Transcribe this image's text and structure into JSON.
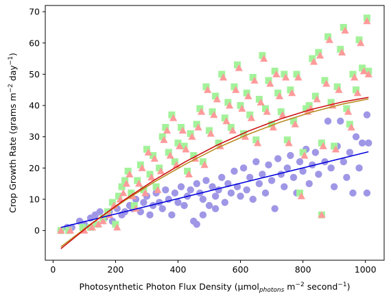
{
  "chart_data": {
    "type": "scatter",
    "title": "",
    "xlabel": "Photosynthetic Photon Flux Density",
    "xlabel_unit": {
      "open": "(μmol",
      "sub": "photons",
      "mid": " m",
      "sup1": "−2",
      "mid2": " second",
      "sup2": "−1",
      "close": ")"
    },
    "ylabel": "Crop Growth Rate",
    "ylabel_unit": {
      "open": "(grams m",
      "sup1": "−2",
      "mid": " day",
      "sup2": "−1",
      "close": ")"
    },
    "xlim": [
      -25,
      1060
    ],
    "ylim": [
      -9.5,
      72
    ],
    "xticks": [
      0,
      200,
      400,
      600,
      800,
      1000
    ],
    "yticks": [
      0,
      10,
      20,
      30,
      40,
      50,
      60,
      70
    ],
    "grid": false,
    "legend": "none",
    "series": [
      {
        "marker": "circle",
        "color": "#9f97e6",
        "points": [
          [
            25,
            0
          ],
          [
            45,
            1
          ],
          [
            60,
            1
          ],
          [
            85,
            3
          ],
          [
            100,
            2
          ],
          [
            120,
            4
          ],
          [
            135,
            5
          ],
          [
            150,
            6
          ],
          [
            165,
            4
          ],
          [
            180,
            6
          ],
          [
            190,
            3
          ],
          [
            205,
            7
          ],
          [
            220,
            5
          ],
          [
            230,
            6
          ],
          [
            245,
            8
          ],
          [
            255,
            7
          ],
          [
            265,
            10
          ],
          [
            280,
            6
          ],
          [
            290,
            9
          ],
          [
            300,
            11
          ],
          [
            310,
            5
          ],
          [
            320,
            8
          ],
          [
            330,
            12
          ],
          [
            340,
            9
          ],
          [
            350,
            7
          ],
          [
            360,
            13
          ],
          [
            370,
            10
          ],
          [
            380,
            5
          ],
          [
            390,
            12
          ],
          [
            400,
            9
          ],
          [
            410,
            14
          ],
          [
            420,
            8
          ],
          [
            430,
            11
          ],
          [
            440,
            13
          ],
          [
            450,
            3
          ],
          [
            460,
            15
          ],
          [
            470,
            12
          ],
          [
            480,
            10
          ],
          [
            490,
            16
          ],
          [
            500,
            8
          ],
          [
            510,
            14
          ],
          [
            520,
            11
          ],
          [
            530,
            13
          ],
          [
            540,
            17
          ],
          [
            550,
            9
          ],
          [
            560,
            15
          ],
          [
            570,
            12
          ],
          [
            580,
            19
          ],
          [
            590,
            14
          ],
          [
            600,
            11
          ],
          [
            610,
            20
          ],
          [
            620,
            13
          ],
          [
            630,
            17
          ],
          [
            640,
            10
          ],
          [
            650,
            22
          ],
          [
            660,
            15
          ],
          [
            670,
            18
          ],
          [
            680,
            12
          ],
          [
            690,
            21
          ],
          [
            700,
            16
          ],
          [
            710,
            7
          ],
          [
            720,
            23
          ],
          [
            730,
            18
          ],
          [
            740,
            14
          ],
          [
            750,
            20
          ],
          [
            760,
            24
          ],
          [
            770,
            17
          ],
          [
            780,
            12
          ],
          [
            790,
            22
          ],
          [
            800,
            19
          ],
          [
            810,
            26
          ],
          [
            820,
            15
          ],
          [
            830,
            21
          ],
          [
            840,
            25
          ],
          [
            850,
            18
          ],
          [
            860,
            28
          ],
          [
            870,
            22
          ],
          [
            880,
            35
          ],
          [
            890,
            20
          ],
          [
            900,
            14
          ],
          [
            910,
            27
          ],
          [
            920,
            35
          ],
          [
            930,
            22
          ],
          [
            940,
            17
          ],
          [
            950,
            25
          ],
          [
            960,
            12
          ],
          [
            970,
            30
          ],
          [
            980,
            20
          ],
          [
            990,
            28
          ],
          [
            1005,
            37
          ],
          [
            1010,
            28
          ],
          [
            1005,
            12
          ],
          [
            460,
            2
          ],
          [
            480,
            5
          ],
          [
            520,
            7
          ]
        ]
      },
      {
        "marker": "square",
        "color": "#a3f29a",
        "points": [
          [
            25,
            0
          ],
          [
            50,
            0
          ],
          [
            95,
            1
          ],
          [
            120,
            1
          ],
          [
            140,
            2
          ],
          [
            160,
            4
          ],
          [
            175,
            6
          ],
          [
            190,
            9
          ],
          [
            200,
            2
          ],
          [
            210,
            11
          ],
          [
            220,
            14
          ],
          [
            230,
            16
          ],
          [
            240,
            19
          ],
          [
            250,
            12
          ],
          [
            260,
            8
          ],
          [
            270,
            16
          ],
          [
            280,
            21
          ],
          [
            290,
            13
          ],
          [
            300,
            26
          ],
          [
            310,
            18
          ],
          [
            320,
            24
          ],
          [
            330,
            14
          ],
          [
            340,
            20
          ],
          [
            350,
            30
          ],
          [
            360,
            33
          ],
          [
            370,
            25
          ],
          [
            380,
            37
          ],
          [
            390,
            22
          ],
          [
            400,
            28
          ],
          [
            410,
            33
          ],
          [
            420,
            27
          ],
          [
            430,
            19
          ],
          [
            440,
            31
          ],
          [
            450,
            24
          ],
          [
            460,
            34
          ],
          [
            470,
            39
          ],
          [
            480,
            22
          ],
          [
            490,
            46
          ],
          [
            500,
            32
          ],
          [
            510,
            38
          ],
          [
            520,
            43
          ],
          [
            530,
            28
          ],
          [
            540,
            50
          ],
          [
            550,
            36
          ],
          [
            560,
            41
          ],
          [
            570,
            33
          ],
          [
            580,
            46
          ],
          [
            590,
            53
          ],
          [
            600,
            40
          ],
          [
            610,
            31
          ],
          [
            620,
            44
          ],
          [
            630,
            37
          ],
          [
            640,
            49
          ],
          [
            650,
            29
          ],
          [
            660,
            42
          ],
          [
            670,
            56
          ],
          [
            680,
            39
          ],
          [
            690,
            48
          ],
          [
            700,
            34
          ],
          [
            710,
            51
          ],
          [
            720,
            44
          ],
          [
            730,
            38
          ],
          [
            740,
            50
          ],
          [
            750,
            29
          ],
          [
            760,
            45
          ],
          [
            770,
            35
          ],
          [
            780,
            50
          ],
          [
            790,
            12
          ],
          [
            800,
            25
          ],
          [
            810,
            39
          ],
          [
            820,
            40
          ],
          [
            830,
            55
          ],
          [
            840,
            43
          ],
          [
            850,
            57
          ],
          [
            860,
            28
          ],
          [
            870,
            48
          ],
          [
            880,
            62
          ],
          [
            890,
            41
          ],
          [
            900,
            27
          ],
          [
            910,
            46
          ],
          [
            920,
            58
          ],
          [
            930,
            65
          ],
          [
            940,
            39
          ],
          [
            950,
            34
          ],
          [
            960,
            50
          ],
          [
            970,
            45
          ],
          [
            980,
            61
          ],
          [
            990,
            52
          ],
          [
            1005,
            68
          ],
          [
            1010,
            51
          ],
          [
            860,
            5
          ]
        ]
      },
      {
        "marker": "triangle",
        "color": "#ff9a9a",
        "points": [
          [
            25,
            0
          ],
          [
            55,
            0
          ],
          [
            100,
            0
          ],
          [
            125,
            1
          ],
          [
            145,
            2
          ],
          [
            160,
            3
          ],
          [
            180,
            5
          ],
          [
            195,
            8
          ],
          [
            205,
            1
          ],
          [
            215,
            10
          ],
          [
            225,
            12
          ],
          [
            235,
            15
          ],
          [
            245,
            18
          ],
          [
            255,
            11
          ],
          [
            265,
            7
          ],
          [
            275,
            15
          ],
          [
            285,
            20
          ],
          [
            295,
            12
          ],
          [
            305,
            25
          ],
          [
            315,
            17
          ],
          [
            325,
            23
          ],
          [
            335,
            13
          ],
          [
            345,
            19
          ],
          [
            355,
            29
          ],
          [
            365,
            32
          ],
          [
            375,
            24
          ],
          [
            385,
            36
          ],
          [
            395,
            21
          ],
          [
            405,
            27
          ],
          [
            415,
            32
          ],
          [
            425,
            26
          ],
          [
            435,
            18
          ],
          [
            445,
            30
          ],
          [
            455,
            23
          ],
          [
            465,
            33
          ],
          [
            475,
            38
          ],
          [
            485,
            21
          ],
          [
            495,
            45
          ],
          [
            505,
            31
          ],
          [
            515,
            37
          ],
          [
            525,
            42
          ],
          [
            535,
            27
          ],
          [
            545,
            49
          ],
          [
            555,
            35
          ],
          [
            565,
            40
          ],
          [
            575,
            32
          ],
          [
            585,
            45
          ],
          [
            595,
            52
          ],
          [
            605,
            39
          ],
          [
            615,
            30
          ],
          [
            625,
            43
          ],
          [
            635,
            36
          ],
          [
            645,
            48
          ],
          [
            655,
            28
          ],
          [
            665,
            41
          ],
          [
            675,
            55
          ],
          [
            685,
            38
          ],
          [
            695,
            47
          ],
          [
            705,
            33
          ],
          [
            715,
            50
          ],
          [
            725,
            43
          ],
          [
            735,
            37
          ],
          [
            745,
            49
          ],
          [
            755,
            28
          ],
          [
            765,
            44
          ],
          [
            775,
            34
          ],
          [
            785,
            49
          ],
          [
            795,
            11
          ],
          [
            805,
            24
          ],
          [
            815,
            38
          ],
          [
            825,
            39
          ],
          [
            835,
            54
          ],
          [
            845,
            42
          ],
          [
            855,
            56
          ],
          [
            865,
            27
          ],
          [
            875,
            47
          ],
          [
            885,
            61
          ],
          [
            895,
            40
          ],
          [
            905,
            26
          ],
          [
            915,
            45
          ],
          [
            925,
            57
          ],
          [
            935,
            64
          ],
          [
            945,
            38
          ],
          [
            955,
            33
          ],
          [
            965,
            49
          ],
          [
            975,
            44
          ],
          [
            985,
            60
          ],
          [
            995,
            51
          ],
          [
            1005,
            67
          ],
          [
            1010,
            50
          ],
          [
            860,
            5
          ]
        ]
      }
    ],
    "fit_lines": [
      {
        "kind": "linear",
        "color": "#0000dd",
        "x": [
          25,
          1010
        ],
        "y": [
          1.0,
          25.2
        ]
      },
      {
        "kind": "quadratic",
        "color": "#b88a1e",
        "x": [
          25,
          125,
          225,
          325,
          425,
          525,
          625,
          725,
          825,
          925,
          1010
        ],
        "y": [
          -5.2,
          2.4,
          9.3,
          15.6,
          21.3,
          26.4,
          30.8,
          34.6,
          37.8,
          40.4,
          42.1
        ]
      },
      {
        "kind": "quadratic",
        "color": "#cc1111",
        "x": [
          25,
          125,
          225,
          325,
          425,
          525,
          625,
          725,
          825,
          925,
          1010
        ],
        "y": [
          -5.8,
          2.3,
          9.6,
          16.2,
          22.1,
          27.3,
          31.8,
          35.6,
          38.7,
          41.1,
          42.6
        ]
      }
    ]
  }
}
